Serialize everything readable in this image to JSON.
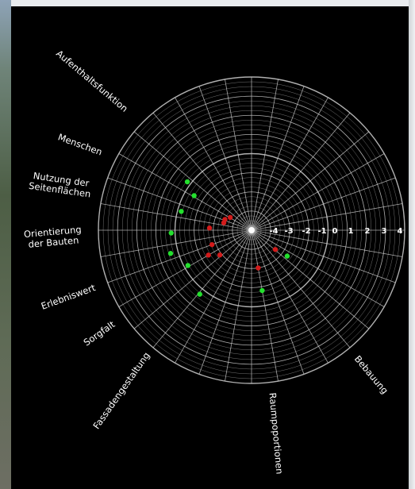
{
  "chart_data": {
    "type": "scatter",
    "subtype": "polar",
    "title": "",
    "radial_scale": {
      "min": -4,
      "max": 4,
      "ticks": [
        "-4",
        "-3",
        "-2",
        "-1",
        "0",
        "1",
        "2",
        "3",
        "4"
      ]
    },
    "axes": [
      {
        "name": "Aufenthaltsfunktion",
        "angle_deg": 220
      },
      {
        "name": "Menschen",
        "angle_deg": 200
      },
      {
        "name": "Nutzung der Seitenflächen",
        "angle_deg": 190
      },
      {
        "name": "Orientierung der Bauten",
        "angle_deg": 175
      },
      {
        "name": "Erlebniswert",
        "angle_deg": 160
      },
      {
        "name": "Sorgfalt",
        "angle_deg": 145
      },
      {
        "name": "Fassadengestaltung",
        "angle_deg": 125
      },
      {
        "name": "Raumpoportionen",
        "angle_deg": 95
      },
      {
        "name": "Bebauung",
        "angle_deg": 50
      }
    ],
    "series": [
      {
        "color": "#24e02e",
        "points": [
          {
            "angle_deg": 217,
            "r": 0.2
          },
          {
            "angle_deg": 211,
            "r": -0.5
          },
          {
            "angle_deg": 195,
            "r": -0.2
          },
          {
            "angle_deg": 178,
            "r": 0.2
          },
          {
            "angle_deg": 164,
            "r": 0.4
          },
          {
            "angle_deg": 151,
            "r": -0.2
          },
          {
            "angle_deg": 129,
            "r": 0.3
          },
          {
            "angle_deg": 80,
            "r": -0.8
          },
          {
            "angle_deg": 36,
            "r": -1.7
          }
        ]
      },
      {
        "color": "#d31b1b",
        "points": [
          {
            "angle_deg": 211,
            "r": -2.7
          },
          {
            "angle_deg": 202,
            "r": -2.5
          },
          {
            "angle_deg": 195,
            "r": -2.5
          },
          {
            "angle_deg": 183,
            "r": -1.8
          },
          {
            "angle_deg": 160,
            "r": -1.8
          },
          {
            "angle_deg": 150,
            "r": -1.4
          },
          {
            "angle_deg": 142,
            "r": -1.9
          },
          {
            "angle_deg": 80,
            "r": -2.0
          },
          {
            "angle_deg": 39,
            "r": -2.4
          }
        ]
      }
    ],
    "grid": true,
    "background": "#000000",
    "grid_color": "#cfcfcf"
  }
}
